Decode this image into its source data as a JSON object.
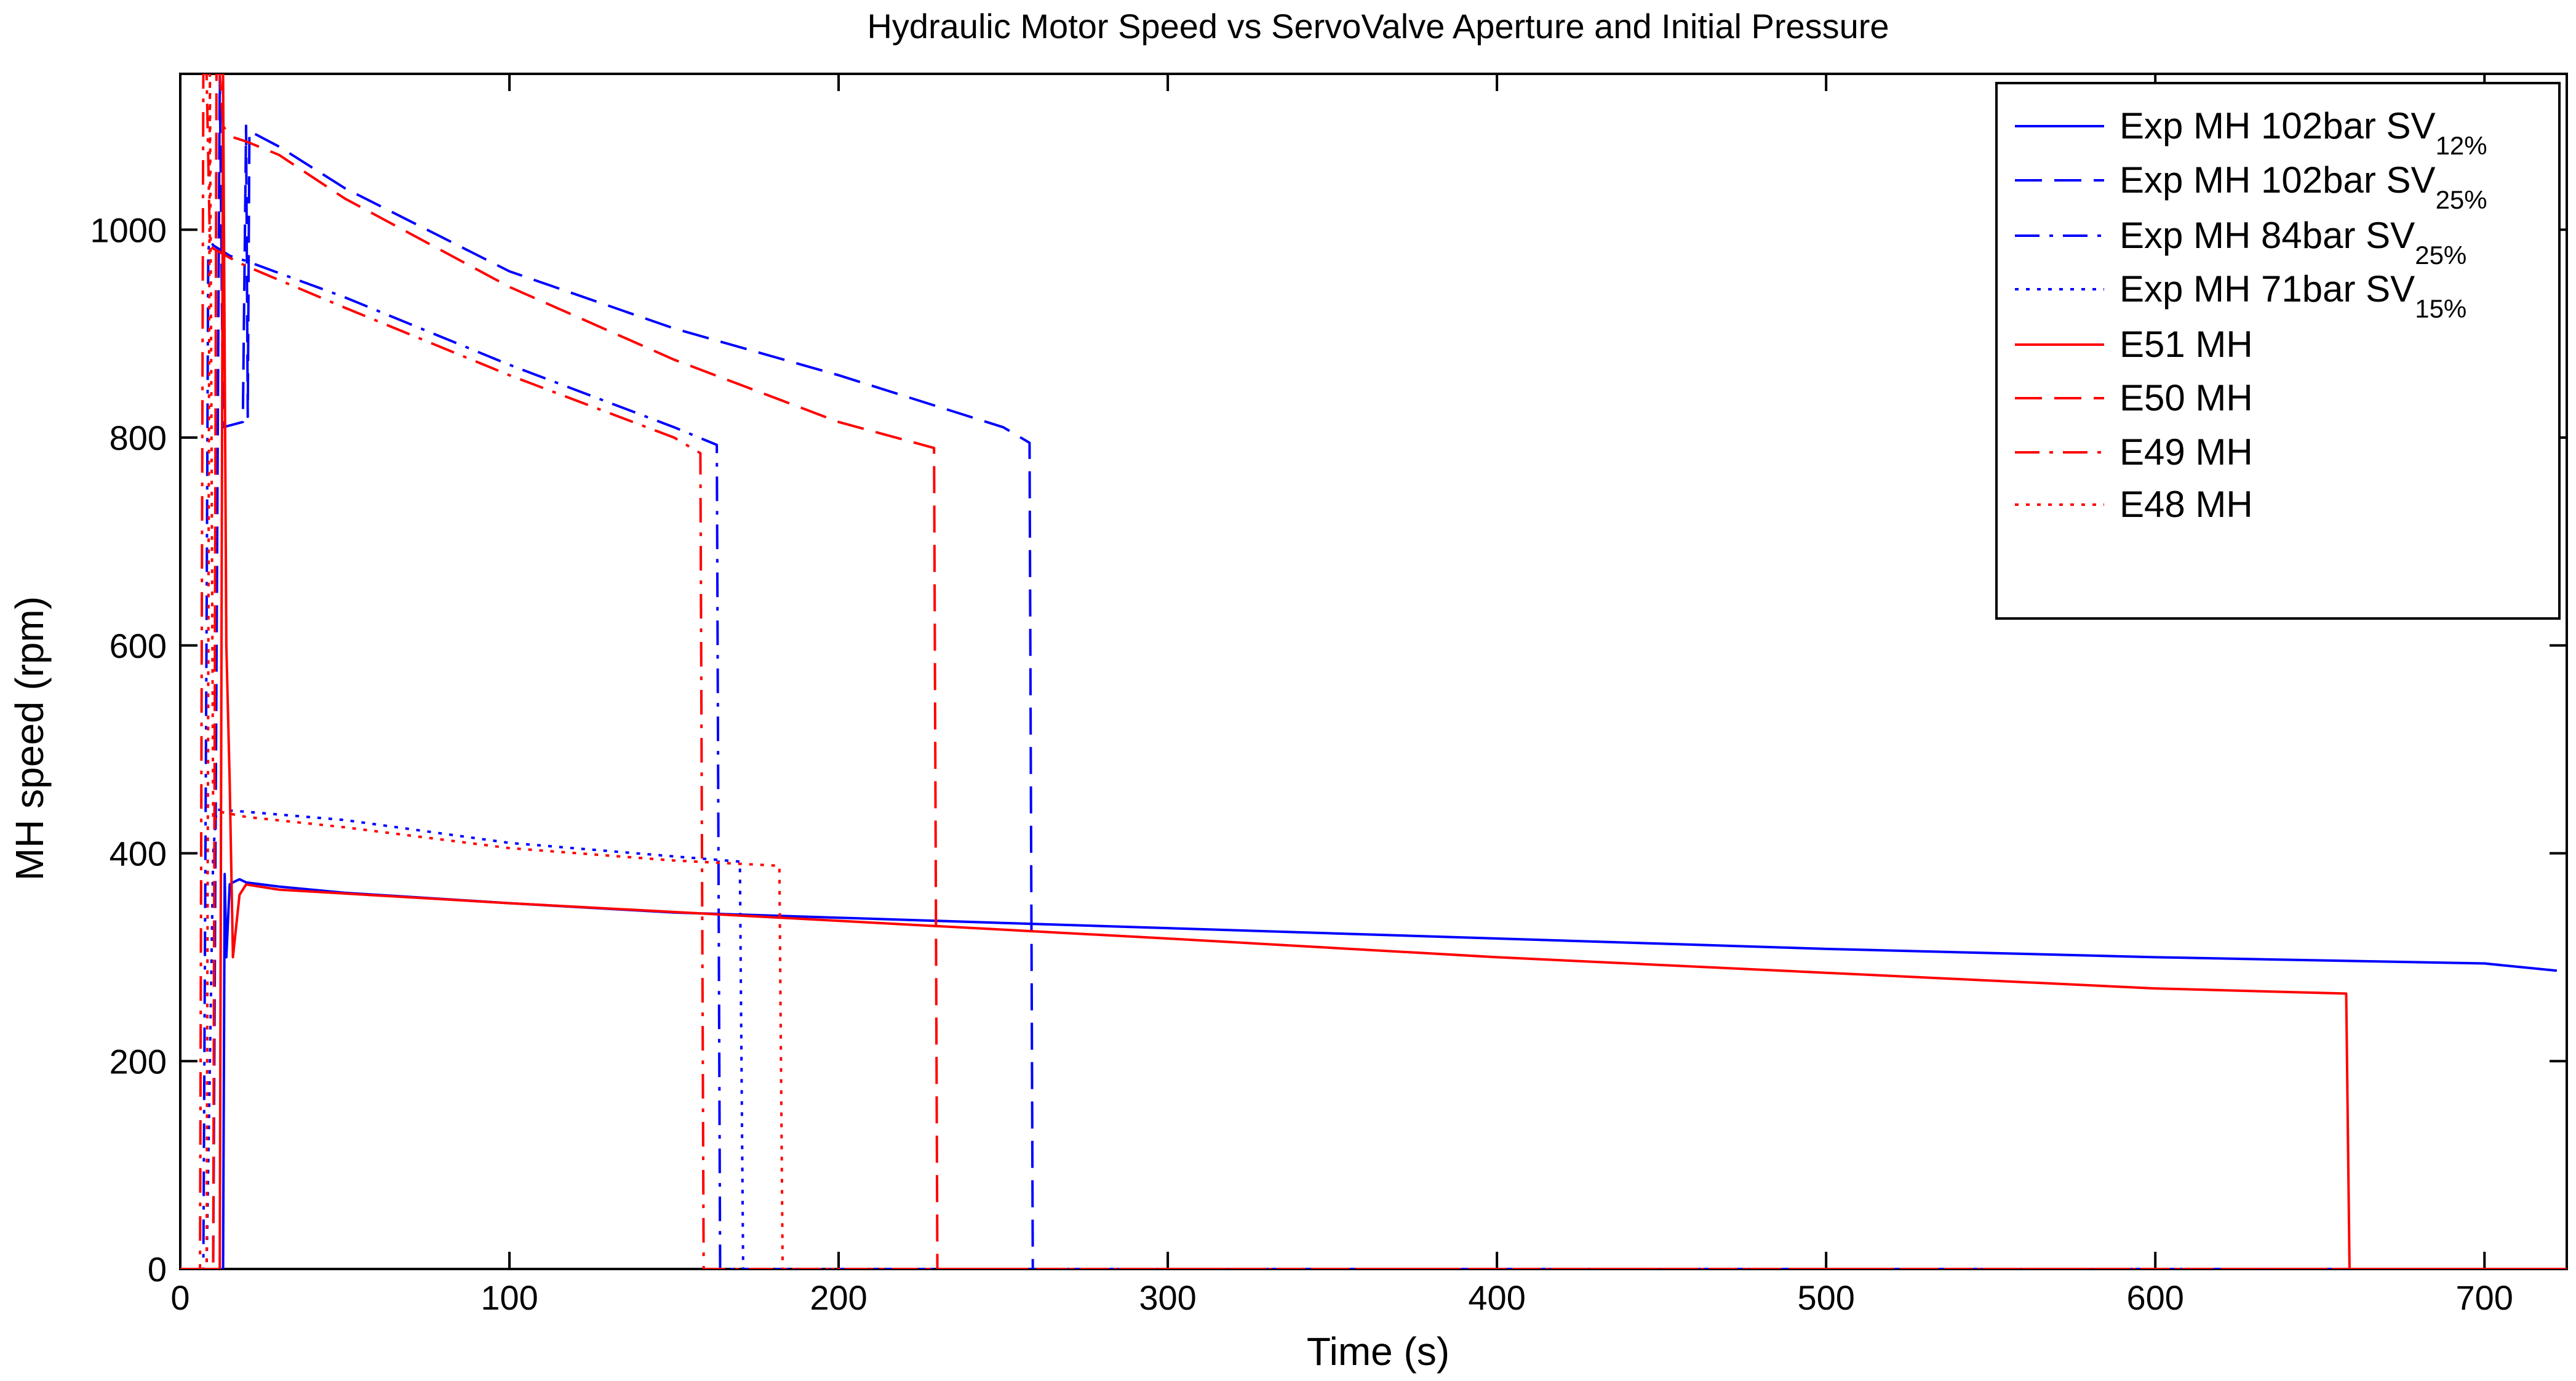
{
  "chart_data": {
    "type": "line",
    "title": "Hydraulic Motor Speed vs ServoValve Aperture and Initial Pressure",
    "xlabel": "Time (s)",
    "ylabel": "MH speed (rpm)",
    "xlim": [
      0,
      725
    ],
    "ylim": [
      0,
      1150
    ],
    "xticks": [
      "0",
      "100",
      "200",
      "300",
      "400",
      "500",
      "600",
      "700"
    ],
    "yticks": [
      "0",
      "200",
      "400",
      "600",
      "800",
      "1000"
    ],
    "grid": false,
    "legend_position": "top-right",
    "series": [
      {
        "name": "Exp MH 102bar SV",
        "sub": "12%",
        "color": "#0000ff",
        "style": "solid",
        "x": [
          0,
          13,
          13.5,
          14,
          15,
          16,
          18,
          20,
          30,
          50,
          100,
          150,
          200,
          250,
          300,
          350,
          400,
          450,
          500,
          550,
          600,
          650,
          700,
          722
        ],
        "y": [
          0,
          0,
          380,
          300,
          370,
          372,
          375,
          372,
          368,
          362,
          352,
          343,
          338,
          333,
          328,
          323,
          318,
          313,
          308,
          304,
          300,
          297,
          294,
          287
        ]
      },
      {
        "name": "Exp MH 102bar SV",
        "sub": "25%",
        "color": "#0000ff",
        "style": "dash",
        "x": [
          0,
          10,
          12,
          13,
          19,
          20,
          20.5,
          21,
          30,
          50,
          100,
          150,
          200,
          250,
          258,
          259,
          260,
          725
        ],
        "y": [
          0,
          0,
          1150,
          810,
          815,
          1100,
          820,
          1095,
          1080,
          1040,
          960,
          905,
          860,
          810,
          795,
          0,
          0,
          0
        ]
      },
      {
        "name": "Exp MH 84bar SV",
        "sub": "25%",
        "color": "#0000ff",
        "style": "dashdot",
        "x": [
          0,
          7,
          8,
          8.5,
          9,
          10,
          15,
          20,
          50,
          100,
          150,
          163,
          164,
          165,
          725
        ],
        "y": [
          0,
          0,
          620,
          980,
          990,
          985,
          975,
          970,
          935,
          870,
          810,
          793,
          0,
          0,
          0
        ]
      },
      {
        "name": "Exp MH 71bar SV",
        "sub": "15%",
        "color": "#0000ff",
        "style": "dot",
        "x": [
          0,
          8,
          9,
          10,
          11,
          20,
          50,
          100,
          150,
          170,
          171,
          172,
          725
        ],
        "y": [
          0,
          0,
          200,
          400,
          442,
          440,
          432,
          410,
          397,
          392,
          0,
          0,
          0
        ]
      },
      {
        "name": "E51 MH",
        "color": "#ff0000",
        "style": "solid",
        "x": [
          0,
          12,
          13,
          14,
          15,
          16,
          18,
          20,
          30,
          100,
          200,
          300,
          400,
          500,
          600,
          658,
          659,
          725
        ],
        "y": [
          0,
          0,
          1150,
          600,
          470,
          300,
          360,
          370,
          365,
          352,
          335,
          318,
          300,
          285,
          270,
          265,
          0,
          0
        ]
      },
      {
        "name": "E50 MH",
        "color": "#ff0000",
        "style": "dash",
        "x": [
          0,
          10,
          11,
          12,
          13,
          15,
          20,
          30,
          50,
          100,
          150,
          200,
          229,
          230,
          231,
          725
        ],
        "y": [
          0,
          0,
          1150,
          1150,
          1100,
          1090,
          1085,
          1072,
          1030,
          945,
          875,
          815,
          790,
          0,
          0,
          0
        ]
      },
      {
        "name": "E49 MH",
        "color": "#ff0000",
        "style": "dashdot",
        "x": [
          0,
          6,
          7,
          8,
          9,
          10,
          15,
          20,
          50,
          100,
          150,
          158,
          159,
          160,
          725
        ],
        "y": [
          0,
          0,
          1150,
          1150,
          985,
          982,
          973,
          965,
          925,
          860,
          800,
          785,
          0,
          0,
          0
        ]
      },
      {
        "name": "E48 MH",
        "color": "#ff0000",
        "style": "dot",
        "x": [
          0,
          8,
          9,
          10,
          12,
          20,
          50,
          100,
          150,
          182,
          183,
          184,
          725
        ],
        "y": [
          0,
          0,
          1150,
          430,
          440,
          435,
          425,
          405,
          393,
          388,
          0,
          0,
          0
        ]
      }
    ]
  }
}
